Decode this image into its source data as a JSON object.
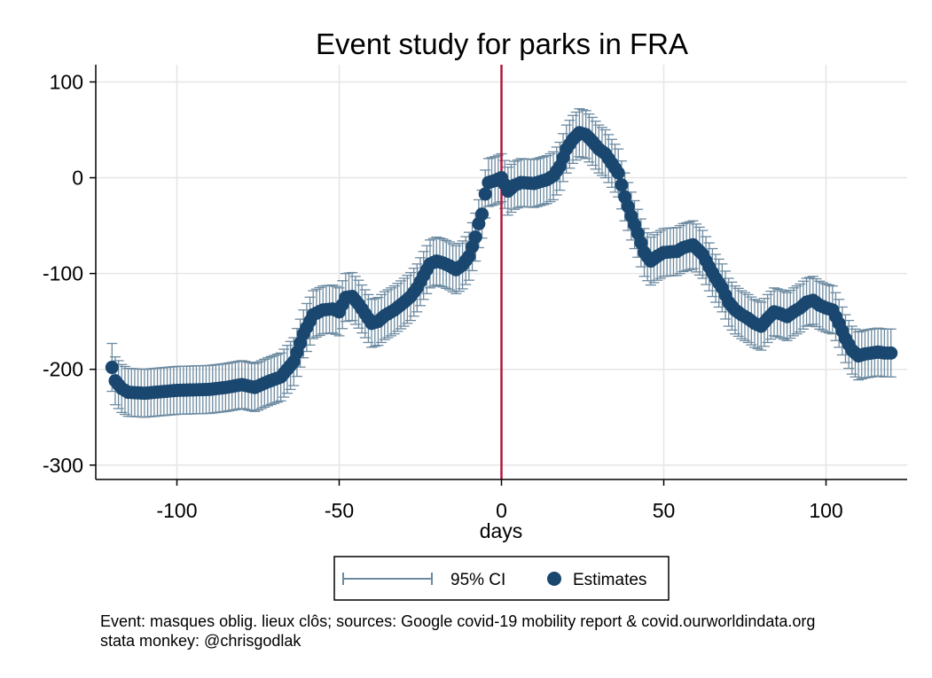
{
  "chart_data": {
    "type": "scatter",
    "title": "Event study for parks in FRA",
    "xlabel": "days",
    "ylabel": "",
    "xlim": [
      -125,
      125
    ],
    "ylim": [
      -315,
      118
    ],
    "xticks": [
      "-100",
      "-50",
      "0",
      "50",
      "100"
    ],
    "xtick_values": [
      -100,
      -50,
      0,
      50,
      100
    ],
    "yticks": [
      "100",
      "0",
      "-100",
      "-200",
      "-300"
    ],
    "ytick_values": [
      100,
      0,
      -100,
      -200,
      -300
    ],
    "event_day": 0,
    "grid": true,
    "legend_position": "bottom",
    "ci_half_width": 25,
    "legend": {
      "ci_label": "95% CI",
      "estimates_label": "Estimates"
    },
    "colors": {
      "estimates": "#1a476f",
      "ci": "#6c8aa0",
      "event_line": "#b0163c",
      "grid": "#e6e6e6"
    },
    "series": [
      {
        "name": "Estimates",
        "keypoints": [
          [
            -120,
            -198
          ],
          [
            -119,
            -212
          ],
          [
            -117,
            -220
          ],
          [
            -115,
            -224
          ],
          [
            -110,
            -225
          ],
          [
            -100,
            -222
          ],
          [
            -90,
            -221
          ],
          [
            -85,
            -219
          ],
          [
            -80,
            -216
          ],
          [
            -76,
            -219
          ],
          [
            -72,
            -213
          ],
          [
            -68,
            -208
          ],
          [
            -64,
            -192
          ],
          [
            -61,
            -163
          ],
          [
            -58,
            -143
          ],
          [
            -55,
            -138
          ],
          [
            -52,
            -137
          ],
          [
            -50,
            -140
          ],
          [
            -48,
            -125
          ],
          [
            -46,
            -124
          ],
          [
            -44,
            -132
          ],
          [
            -42,
            -142
          ],
          [
            -40,
            -152
          ],
          [
            -38,
            -150
          ],
          [
            -36,
            -144
          ],
          [
            -33,
            -138
          ],
          [
            -30,
            -130
          ],
          [
            -28,
            -124
          ],
          [
            -26,
            -115
          ],
          [
            -24,
            -102
          ],
          [
            -22,
            -90
          ],
          [
            -20,
            -87
          ],
          [
            -18,
            -89
          ],
          [
            -16,
            -92
          ],
          [
            -14,
            -96
          ],
          [
            -12,
            -91
          ],
          [
            -10,
            -82
          ],
          [
            -8,
            -62
          ],
          [
            -7,
            -48
          ],
          [
            -6,
            -38
          ],
          [
            -5,
            -17
          ],
          [
            -4,
            -5
          ],
          [
            -2,
            -3
          ],
          [
            0,
            0
          ],
          [
            2,
            -14
          ],
          [
            4,
            -8
          ],
          [
            6,
            -5
          ],
          [
            10,
            -6
          ],
          [
            14,
            -2
          ],
          [
            16,
            2
          ],
          [
            18,
            12
          ],
          [
            20,
            30
          ],
          [
            22,
            40
          ],
          [
            24,
            47
          ],
          [
            26,
            45
          ],
          [
            28,
            38
          ],
          [
            30,
            30
          ],
          [
            32,
            25
          ],
          [
            34,
            15
          ],
          [
            36,
            5
          ],
          [
            38,
            -20
          ],
          [
            40,
            -40
          ],
          [
            42,
            -58
          ],
          [
            44,
            -78
          ],
          [
            46,
            -87
          ],
          [
            48,
            -82
          ],
          [
            50,
            -78
          ],
          [
            54,
            -77
          ],
          [
            56,
            -73
          ],
          [
            59,
            -70
          ],
          [
            62,
            -80
          ],
          [
            64,
            -93
          ],
          [
            66,
            -105
          ],
          [
            68,
            -115
          ],
          [
            70,
            -130
          ],
          [
            72,
            -138
          ],
          [
            74,
            -143
          ],
          [
            76,
            -147
          ],
          [
            78,
            -152
          ],
          [
            80,
            -155
          ],
          [
            82,
            -147
          ],
          [
            84,
            -140
          ],
          [
            86,
            -142
          ],
          [
            88,
            -145
          ],
          [
            90,
            -140
          ],
          [
            92,
            -136
          ],
          [
            94,
            -130
          ],
          [
            96,
            -128
          ],
          [
            98,
            -133
          ],
          [
            100,
            -136
          ],
          [
            102,
            -138
          ],
          [
            104,
            -152
          ],
          [
            106,
            -168
          ],
          [
            108,
            -180
          ],
          [
            110,
            -186
          ],
          [
            112,
            -184
          ],
          [
            116,
            -182
          ],
          [
            118,
            -183
          ],
          [
            120,
            -183
          ]
        ]
      }
    ]
  },
  "notes": {
    "line1": "Event: masques oblig. lieux clôs; sources: Google covid-19 mobility report & covid.ourworldindata.org",
    "line2": "stata monkey: @chrisgodlak"
  }
}
